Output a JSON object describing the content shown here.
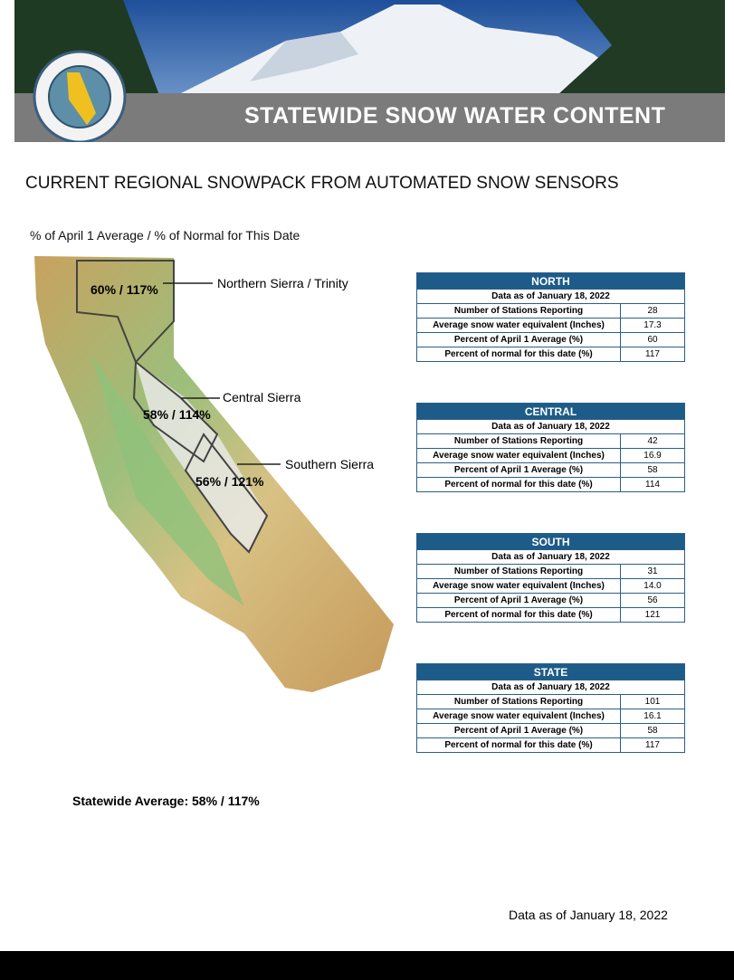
{
  "header": {
    "title": "STATEWIDE SNOW WATER CONTENT"
  },
  "heading": "CURRENT REGIONAL SNOWPACK FROM AUTOMATED SNOW SENSORS",
  "subheading": "% of April 1 Average / % of Normal for This Date",
  "map": {
    "regions": [
      {
        "name": "Northern Sierra / Trinity",
        "value": "60% / 117%"
      },
      {
        "name": "Central Sierra",
        "value": "58% / 114%"
      },
      {
        "name": "Southern Sierra",
        "value": "56% / 121%"
      }
    ]
  },
  "tables": [
    {
      "title": "NORTH",
      "date": "Data as of January 18, 2022",
      "rows": [
        [
          "Number of Stations Reporting",
          "28"
        ],
        [
          "Average snow water equivalent (Inches)",
          "17.3"
        ],
        [
          "Percent of April 1 Average (%)",
          "60"
        ],
        [
          "Percent of normal for this date (%)",
          "117"
        ]
      ]
    },
    {
      "title": "CENTRAL",
      "date": "Data as of January 18, 2022",
      "rows": [
        [
          "Number of Stations Reporting",
          "42"
        ],
        [
          "Average snow water equivalent (Inches)",
          "16.9"
        ],
        [
          "Percent of April 1 Average (%)",
          "58"
        ],
        [
          "Percent of normal for this date (%)",
          "114"
        ]
      ]
    },
    {
      "title": "SOUTH",
      "date": "Data as of January 18, 2022",
      "rows": [
        [
          "Number of Stations Reporting",
          "31"
        ],
        [
          "Average snow water equivalent (Inches)",
          "14.0"
        ],
        [
          "Percent of April 1 Average (%)",
          "56"
        ],
        [
          "Percent of normal for this date (%)",
          "121"
        ]
      ]
    },
    {
      "title": "STATE",
      "date": "Data as of January 18, 2022",
      "rows": [
        [
          "Number of Stations Reporting",
          "101"
        ],
        [
          "Average snow water equivalent (Inches)",
          "16.1"
        ],
        [
          "Percent of April 1 Average (%)",
          "58"
        ],
        [
          "Percent of normal for this date (%)",
          "117"
        ]
      ]
    }
  ],
  "statewide": "Statewide Average: 58% / 117%",
  "footer": "Data as of January 18, 2022"
}
